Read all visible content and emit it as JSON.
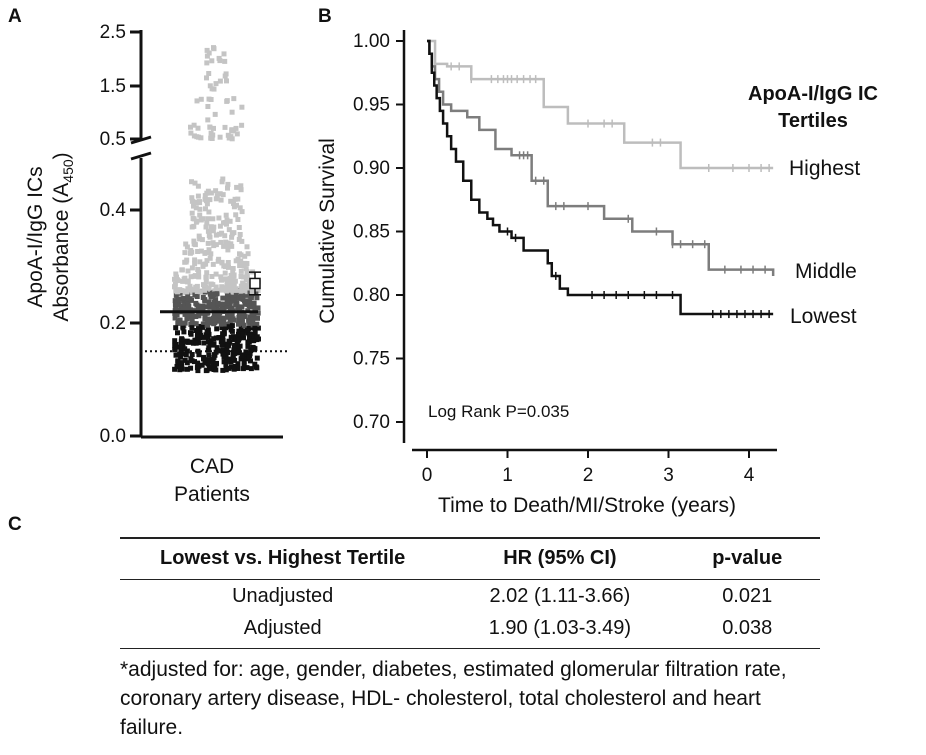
{
  "panels": {
    "a": "A",
    "b": "B",
    "c": "C"
  },
  "chart_data": [
    {
      "type": "scatter",
      "panel": "A",
      "ylabel_line1": "ApoA-I/IgG ICs",
      "ylabel_line2_main": "Absorbance (A",
      "ylabel_line2_sub": "450",
      "ylabel_line2_end": ")",
      "xlabel_line1": "CAD",
      "xlabel_line2": "Patients",
      "y_ticks_lower": [
        "0.0",
        "0.2",
        "0.4"
      ],
      "y_ticks_upper": [
        "0.5",
        "1.5",
        "2.5"
      ],
      "axis_break": true,
      "median": 0.22,
      "reference_dotted": 0.15,
      "group_mean": 0.27,
      "group_mean_error": 0.02,
      "tertile_cutoffs": [
        0.2,
        0.26
      ],
      "tertile_colors": {
        "lowest": "#111111",
        "middle": "#555555",
        "highest": "#c4c4c4"
      },
      "n_points_approx": 800
    },
    {
      "type": "line",
      "panel": "B",
      "ylabel": "Cumulative Survival",
      "xlabel": "Time to Death/MI/Stroke (years)",
      "xlim": [
        0,
        4.3
      ],
      "ylim": [
        0.7,
        1.0
      ],
      "x_ticks": [
        "0",
        "1",
        "2",
        "3",
        "4"
      ],
      "y_ticks": [
        "0.70",
        "0.75",
        "0.80",
        "0.85",
        "0.90",
        "0.95",
        "1.00"
      ],
      "legend_title_line1": "ApoA-I/IgG IC",
      "legend_title_line2": "Tertiles",
      "annotation": "Log Rank P=0.035",
      "series": [
        {
          "name": "Highest",
          "color": "#bdbdbd",
          "x": [
            0,
            0.1,
            0.25,
            0.55,
            1.45,
            1.75,
            2.45,
            3.15,
            4.3
          ],
          "y": [
            1.0,
            0.982,
            0.98,
            0.97,
            0.948,
            0.935,
            0.92,
            0.9,
            0.9
          ],
          "censor_x": [
            0.3,
            0.4,
            0.55,
            0.8,
            0.88,
            0.95,
            1.0,
            1.05,
            1.12,
            1.2,
            1.28,
            1.35,
            2.0,
            2.2,
            2.3,
            2.8,
            2.9,
            3.5,
            3.8,
            4.0,
            4.15,
            4.25
          ]
        },
        {
          "name": "Middle",
          "color": "#7d7d7d",
          "x": [
            0,
            0.03,
            0.06,
            0.1,
            0.15,
            0.2,
            0.3,
            0.5,
            0.65,
            0.85,
            1.05,
            1.3,
            1.5,
            2.05,
            2.2,
            2.55,
            3.05,
            3.5,
            4.3
          ],
          "y": [
            1.0,
            0.99,
            0.98,
            0.97,
            0.96,
            0.95,
            0.945,
            0.94,
            0.93,
            0.915,
            0.91,
            0.89,
            0.87,
            0.87,
            0.86,
            0.85,
            0.84,
            0.82,
            0.815
          ],
          "censor_x": [
            1.15,
            1.2,
            1.25,
            1.35,
            1.45,
            1.6,
            1.7,
            2.0,
            2.5,
            2.85,
            3.05,
            3.15,
            3.3,
            3.45,
            3.7,
            3.9,
            4.05,
            4.2
          ]
        },
        {
          "name": "Lowest",
          "color": "#111111",
          "x": [
            0,
            0.03,
            0.06,
            0.09,
            0.12,
            0.16,
            0.2,
            0.25,
            0.3,
            0.36,
            0.45,
            0.55,
            0.65,
            0.75,
            0.82,
            0.9,
            1.05,
            1.2,
            1.5,
            1.55,
            1.65,
            1.75,
            3.15,
            4.3
          ],
          "y": [
            1.0,
            0.99,
            0.975,
            0.965,
            0.955,
            0.945,
            0.935,
            0.925,
            0.915,
            0.905,
            0.89,
            0.875,
            0.865,
            0.86,
            0.855,
            0.85,
            0.845,
            0.835,
            0.825,
            0.815,
            0.805,
            0.8,
            0.785,
            0.785
          ],
          "censor_x": [
            1.0,
            1.1,
            1.6,
            2.05,
            2.2,
            2.35,
            2.5,
            2.7,
            2.85,
            3.05,
            3.55,
            3.65,
            3.75,
            3.85,
            3.95,
            4.05,
            4.15,
            4.25
          ]
        }
      ]
    }
  ],
  "table": {
    "headers": [
      "Lowest vs. Highest Tertile",
      "HR (95% CI)",
      "p-value"
    ],
    "rows": [
      {
        "label": "Unadjusted",
        "hr": "2.02 (1.11-3.66)",
        "p": "0.021"
      },
      {
        "label": "Adjusted",
        "hr": "1.90 (1.03-3.49)",
        "p": "0.038"
      }
    ]
  },
  "footnote": "*adjusted for: age, gender, diabetes, estimated glomerular filtration rate, coronary artery disease, HDL- cholesterol, total cholesterol and heart failure."
}
